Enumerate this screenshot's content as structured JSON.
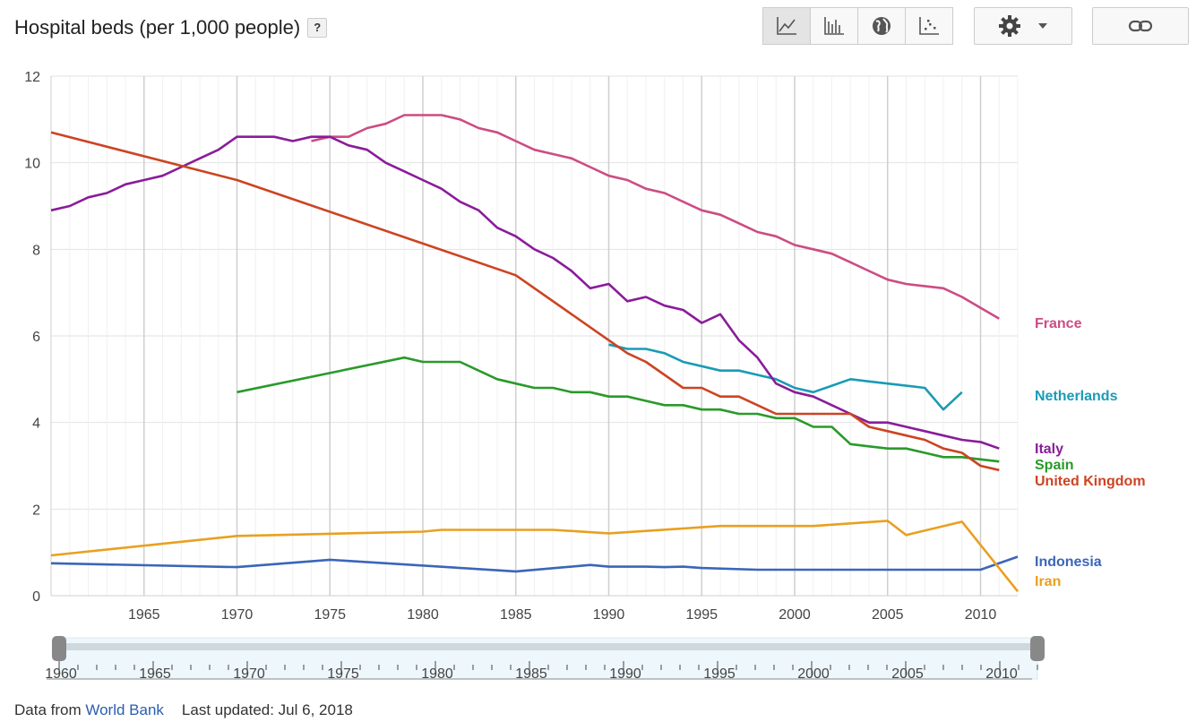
{
  "header": {
    "title": "Hospital beds (per 1,000 people)",
    "help": "?"
  },
  "toolbar": {
    "buttons": [
      {
        "name": "line-chart-button",
        "icon": "line-chart-icon",
        "active": true
      },
      {
        "name": "bar-chart-button",
        "icon": "bar-chart-icon",
        "active": false
      },
      {
        "name": "map-button",
        "icon": "globe-icon",
        "active": false
      },
      {
        "name": "scatter-button",
        "icon": "scatter-icon",
        "active": false
      }
    ],
    "settings_icon": "gear-icon",
    "dropdown_icon": "caret-down-icon",
    "link_icon": "link-icon"
  },
  "footer": {
    "prefix": "Data from ",
    "source": "World Bank",
    "updated": "Last updated: Jul 6, 2018"
  },
  "slider": {
    "labels": [
      "1960",
      "1965",
      "1970",
      "1975",
      "1980",
      "1985",
      "1990",
      "1995",
      "2000",
      "2005",
      "2010"
    ],
    "range": [
      1960,
      2012
    ]
  },
  "chart_data": {
    "type": "line",
    "title": "Hospital beds (per 1,000 people)",
    "xlabel": "",
    "ylabel": "",
    "xlim": [
      1960,
      2012
    ],
    "ylim": [
      0,
      12
    ],
    "xticks": [
      1965,
      1970,
      1975,
      1980,
      1985,
      1990,
      1995,
      2000,
      2005,
      2010
    ],
    "yticks": [
      0,
      2,
      4,
      6,
      8,
      10,
      12
    ],
    "grid": true,
    "legend": "right end labels",
    "series": [
      {
        "name": "France",
        "color": "#cc4c84",
        "x": [
          1974,
          1975,
          1976,
          1977,
          1978,
          1979,
          1980,
          1981,
          1982,
          1983,
          1984,
          1985,
          1986,
          1987,
          1988,
          1989,
          1990,
          1991,
          1992,
          1993,
          1994,
          1995,
          1996,
          1997,
          1998,
          1999,
          2000,
          2001,
          2002,
          2003,
          2004,
          2005,
          2006,
          2007,
          2008,
          2009,
          2010,
          2011
        ],
        "y": [
          10.5,
          10.6,
          10.6,
          10.8,
          10.9,
          11.1,
          11.1,
          11.1,
          11.0,
          10.8,
          10.7,
          10.5,
          10.3,
          10.2,
          10.1,
          9.9,
          9.7,
          9.6,
          9.4,
          9.3,
          9.1,
          8.9,
          8.8,
          8.6,
          8.4,
          8.3,
          8.1,
          8.0,
          7.9,
          7.7,
          7.5,
          7.3,
          7.2,
          7.15,
          7.1,
          6.9,
          6.65,
          6.4
        ]
      },
      {
        "name": "Netherlands",
        "color": "#1a9bb5",
        "x": [
          1990,
          1991,
          1992,
          1993,
          1994,
          1995,
          1996,
          1997,
          1998,
          1999,
          2000,
          2001,
          2002,
          2003,
          2004,
          2005,
          2006,
          2007,
          2008,
          2009
        ],
        "y": [
          5.8,
          5.7,
          5.7,
          5.6,
          5.4,
          5.3,
          5.2,
          5.2,
          5.1,
          5.0,
          4.8,
          4.7,
          4.85,
          5.0,
          4.95,
          4.9,
          4.85,
          4.8,
          4.3,
          4.7
        ]
      },
      {
        "name": "Italy",
        "color": "#8a1c9a",
        "x": [
          1960,
          1961,
          1962,
          1963,
          1964,
          1965,
          1966,
          1967,
          1968,
          1969,
          1970,
          1971,
          1972,
          1973,
          1974,
          1975,
          1976,
          1977,
          1978,
          1979,
          1980,
          1981,
          1982,
          1983,
          1984,
          1985,
          1986,
          1987,
          1988,
          1989,
          1990,
          1991,
          1992,
          1993,
          1994,
          1995,
          1996,
          1997,
          1998,
          1999,
          2000,
          2001,
          2002,
          2003,
          2004,
          2005,
          2006,
          2007,
          2008,
          2009,
          2010,
          2011
        ],
        "y": [
          8.9,
          9.0,
          9.2,
          9.3,
          9.5,
          9.6,
          9.7,
          9.9,
          10.1,
          10.3,
          10.6,
          10.6,
          10.6,
          10.5,
          10.6,
          10.6,
          10.4,
          10.3,
          10.0,
          9.8,
          9.6,
          9.4,
          9.1,
          8.9,
          8.5,
          8.3,
          8.0,
          7.8,
          7.5,
          7.1,
          7.2,
          6.8,
          6.9,
          6.7,
          6.6,
          6.3,
          6.5,
          5.9,
          5.5,
          4.9,
          4.7,
          4.6,
          4.4,
          4.2,
          4.0,
          4.0,
          3.9,
          3.8,
          3.7,
          3.6,
          3.55,
          3.4
        ]
      },
      {
        "name": "Spain",
        "color": "#2a9a2a",
        "x": [
          1970,
          1979,
          1980,
          1981,
          1982,
          1983,
          1984,
          1985,
          1986,
          1987,
          1988,
          1989,
          1990,
          1991,
          1992,
          1993,
          1994,
          1995,
          1996,
          1997,
          1998,
          1999,
          2000,
          2001,
          2002,
          2003,
          2004,
          2005,
          2006,
          2007,
          2008,
          2009,
          2010,
          2011
        ],
        "y": [
          4.7,
          5.5,
          5.4,
          5.4,
          5.4,
          5.2,
          5.0,
          4.9,
          4.8,
          4.8,
          4.7,
          4.7,
          4.6,
          4.6,
          4.5,
          4.4,
          4.4,
          4.3,
          4.3,
          4.2,
          4.2,
          4.1,
          4.1,
          3.9,
          3.9,
          3.5,
          3.45,
          3.4,
          3.4,
          3.3,
          3.2,
          3.2,
          3.15,
          3.1
        ]
      },
      {
        "name": "United Kingdom",
        "color": "#cc4422",
        "x": [
          1960,
          1970,
          1985,
          1990,
          1991,
          1992,
          1993,
          1994,
          1995,
          1996,
          1997,
          1998,
          1999,
          2000,
          2001,
          2002,
          2003,
          2004,
          2005,
          2006,
          2007,
          2008,
          2009,
          2010,
          2011
        ],
        "y": [
          10.7,
          9.6,
          7.4,
          5.9,
          5.6,
          5.4,
          5.1,
          4.8,
          4.8,
          4.6,
          4.6,
          4.4,
          4.2,
          4.2,
          4.2,
          4.2,
          4.2,
          3.9,
          3.8,
          3.7,
          3.6,
          3.4,
          3.3,
          3.0,
          2.9
        ]
      },
      {
        "name": "Indonesia",
        "color": "#3a66b8",
        "x": [
          1960,
          1970,
          1975,
          1985,
          1989,
          1990,
          1992,
          1993,
          1994,
          1995,
          1998,
          2000,
          2010,
          2012
        ],
        "y": [
          0.75,
          0.66,
          0.83,
          0.56,
          0.71,
          0.67,
          0.67,
          0.66,
          0.67,
          0.64,
          0.6,
          0.6,
          0.6,
          0.9
        ]
      },
      {
        "name": "Iran",
        "color": "#e9a020",
        "x": [
          1960,
          1970,
          1980,
          1981,
          1987,
          1990,
          1995,
          1996,
          2001,
          2005,
          2006,
          2009,
          2012
        ],
        "y": [
          0.93,
          1.38,
          1.48,
          1.52,
          1.52,
          1.44,
          1.58,
          1.61,
          1.61,
          1.73,
          1.4,
          1.71,
          0.1
        ]
      }
    ]
  }
}
